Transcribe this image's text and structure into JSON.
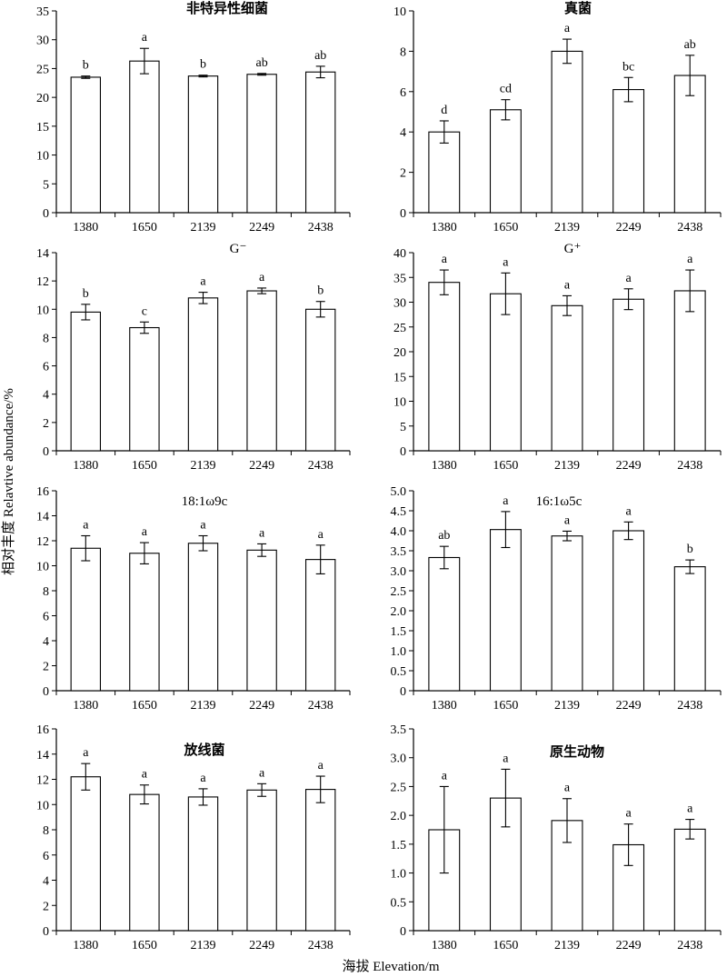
{
  "ylabel": "相对丰度 Relavtive abundance/%",
  "xlabel": "海拔 Elevation/m",
  "chart_data": [
    {
      "type": "bar",
      "title": "非特异性细菌",
      "title_style": "bold",
      "categories": [
        "1380",
        "1650",
        "2139",
        "2249",
        "2438"
      ],
      "values": [
        23.5,
        26.3,
        23.7,
        24.0,
        24.4
      ],
      "errors": [
        0.2,
        2.2,
        0.15,
        0.15,
        1.0
      ],
      "sig": [
        "b",
        "a",
        "b",
        "ab",
        "ab"
      ],
      "ylim": [
        0,
        35
      ],
      "yticks": [
        "0",
        "5",
        "10",
        "15",
        "20",
        "25",
        "30",
        "35"
      ]
    },
    {
      "type": "bar",
      "title": "真菌",
      "title_style": "bold",
      "categories": [
        "1380",
        "1650",
        "2139",
        "2249",
        "2438"
      ],
      "values": [
        4.0,
        5.1,
        8.0,
        6.1,
        6.8
      ],
      "errors": [
        0.55,
        0.5,
        0.6,
        0.6,
        1.0
      ],
      "sig": [
        "d",
        "cd",
        "a",
        "bc",
        "ab"
      ],
      "ylim": [
        0,
        10
      ],
      "yticks": [
        "0",
        "2",
        "4",
        "6",
        "8",
        "10"
      ]
    },
    {
      "type": "bar",
      "title": "G⁻",
      "title_style": "plain",
      "categories": [
        "1380",
        "1650",
        "2139",
        "2249",
        "2438"
      ],
      "values": [
        9.8,
        8.7,
        10.8,
        11.3,
        10.0
      ],
      "errors": [
        0.55,
        0.4,
        0.4,
        0.2,
        0.55
      ],
      "sig": [
        "b",
        "c",
        "a",
        "a",
        "b"
      ],
      "ylim": [
        0,
        14
      ],
      "yticks": [
        "0",
        "2",
        "4",
        "6",
        "8",
        "10",
        "12",
        "14"
      ]
    },
    {
      "type": "bar",
      "title": "G⁺",
      "title_style": "plain",
      "categories": [
        "1380",
        "1650",
        "2139",
        "2249",
        "2438"
      ],
      "values": [
        34.0,
        31.7,
        29.3,
        30.6,
        32.3
      ],
      "errors": [
        2.5,
        4.2,
        2.0,
        2.1,
        4.2
      ],
      "sig": [
        "a",
        "a",
        "a",
        "a",
        "a"
      ],
      "ylim": [
        0,
        40
      ],
      "yticks": [
        "0",
        "5",
        "10",
        "15",
        "20",
        "25",
        "30",
        "35",
        "40"
      ]
    },
    {
      "type": "bar",
      "title": "18:1ω9c",
      "title_style": "plain",
      "categories": [
        "1380",
        "1650",
        "2139",
        "2249",
        "2438"
      ],
      "values": [
        11.4,
        11.0,
        11.8,
        11.25,
        10.5
      ],
      "errors": [
        1.0,
        0.85,
        0.6,
        0.5,
        1.15
      ],
      "sig": [
        "a",
        "a",
        "a",
        "a",
        "a"
      ],
      "ylim": [
        0,
        16
      ],
      "yticks": [
        "0",
        "2",
        "4",
        "6",
        "8",
        "10",
        "12",
        "14",
        "16"
      ]
    },
    {
      "type": "bar",
      "title": "16:1ω5c",
      "title_style": "plain",
      "categories": [
        "1380",
        "1650",
        "2139",
        "2249",
        "2438"
      ],
      "values": [
        3.33,
        4.03,
        3.87,
        4.0,
        3.1
      ],
      "errors": [
        0.28,
        0.45,
        0.12,
        0.22,
        0.17
      ],
      "sig": [
        "ab",
        "a",
        "a",
        "a",
        "b"
      ],
      "ylim": [
        0,
        5
      ],
      "yticks": [
        "0",
        "0.5",
        "1.0",
        "1.5",
        "2.0",
        "2.5",
        "3.0",
        "3.5",
        "4.0",
        "4.5",
        "5.0"
      ]
    },
    {
      "type": "bar",
      "title": "放线菌",
      "title_style": "bold",
      "categories": [
        "1380",
        "1650",
        "2139",
        "2249",
        "2438"
      ],
      "values": [
        12.2,
        10.8,
        10.6,
        11.15,
        11.2
      ],
      "errors": [
        1.05,
        0.75,
        0.65,
        0.5,
        1.05
      ],
      "sig": [
        "a",
        "a",
        "a",
        "a",
        "a"
      ],
      "ylim": [
        0,
        16
      ],
      "yticks": [
        "0",
        "2",
        "4",
        "6",
        "8",
        "10",
        "12",
        "14",
        "16"
      ]
    },
    {
      "type": "bar",
      "title": "原生动物",
      "title_style": "bold",
      "categories": [
        "1380",
        "1650",
        "2139",
        "2249",
        "2438"
      ],
      "values": [
        1.75,
        2.3,
        1.91,
        1.49,
        1.76
      ],
      "errors": [
        0.75,
        0.5,
        0.38,
        0.36,
        0.17
      ],
      "sig": [
        "a",
        "a",
        "a",
        "a",
        "a"
      ],
      "ylim": [
        0,
        3.5
      ],
      "yticks": [
        "0",
        "0.5",
        "1.0",
        "1.5",
        "2.0",
        "2.5",
        "3.0",
        "3.5"
      ]
    }
  ]
}
